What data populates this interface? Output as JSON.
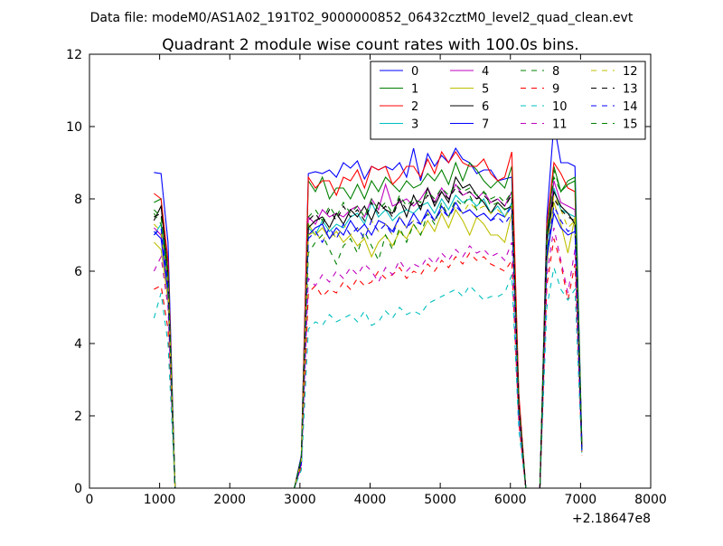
{
  "figure": {
    "suptitle": "Data file: modeM0/AS1A02_191T02_9000000852_06432cztM0_level2_quad_clean.evt"
  },
  "chart_data": {
    "type": "line",
    "title": "Quadrant 2 module wise count rates with 100.0s bins.",
    "xlabel": "",
    "ylabel": "",
    "xlim": [
      0,
      8000
    ],
    "ylim": [
      0,
      12
    ],
    "x_offset_label": "+2.18647e8",
    "x_ticks": [
      0,
      1000,
      2000,
      3000,
      4000,
      5000,
      6000,
      7000,
      8000
    ],
    "x_tick_labels": [
      "0",
      "1000",
      "2000",
      "3000",
      "4000",
      "5000",
      "6000",
      "7000",
      "8000"
    ],
    "y_ticks": [
      0,
      2,
      4,
      6,
      8,
      10,
      12
    ],
    "y_tick_labels": [
      "0",
      "2",
      "4",
      "6",
      "8",
      "10",
      "12"
    ],
    "grid": false,
    "legend_position": "top-right",
    "legend_columns": 4,
    "x": [
      920,
      1020,
      1120,
      1220,
      2820,
      2920,
      3020,
      3120,
      3220,
      3320,
      3420,
      3520,
      3620,
      3720,
      3820,
      3920,
      4020,
      4120,
      4220,
      4320,
      4420,
      4520,
      4620,
      4720,
      4820,
      4920,
      5020,
      5120,
      5220,
      5320,
      5420,
      5520,
      5620,
      5720,
      5820,
      5920,
      6020,
      6120,
      6220,
      6320,
      6420,
      6520,
      6620,
      6720,
      6820,
      6920,
      7020
    ],
    "series": [
      {
        "name": "0",
        "color": "#0000ff",
        "dash": "solid",
        "values": [
          8.73,
          8.7,
          6.8,
          0,
          0,
          0,
          0.9,
          8.7,
          8.75,
          8.7,
          8.8,
          8.6,
          9.0,
          8.85,
          9.05,
          8.55,
          8.9,
          8.8,
          8.9,
          8.8,
          9.0,
          8.6,
          9.4,
          8.5,
          9.25,
          8.9,
          9.2,
          9.0,
          9.4,
          9.1,
          9.0,
          8.7,
          8.8,
          8.8,
          8.5,
          8.55,
          8.6,
          2.5,
          0,
          0,
          0,
          7.5,
          10.1,
          9.0,
          9.0,
          8.9,
          1.2
        ]
      },
      {
        "name": "1",
        "color": "#008000",
        "dash": "solid",
        "values": [
          7.9,
          8.0,
          6.2,
          0,
          0,
          0,
          0.85,
          8.5,
          8.2,
          8.6,
          8.0,
          8.3,
          8.3,
          8.0,
          8.4,
          8.0,
          8.5,
          8.2,
          8.6,
          8.4,
          8.2,
          8.5,
          8.3,
          8.4,
          8.7,
          8.5,
          8.8,
          8.4,
          9.0,
          8.5,
          9.0,
          8.8,
          8.5,
          8.3,
          8.5,
          8.3,
          8.9,
          2.4,
          0,
          0,
          0,
          7.0,
          8.9,
          8.2,
          8.5,
          8.6,
          1.1
        ]
      },
      {
        "name": "2",
        "color": "#ff0000",
        "dash": "solid",
        "values": [
          8.15,
          8.0,
          6.3,
          0,
          0,
          0,
          0.8,
          8.6,
          8.3,
          8.5,
          8.5,
          8.1,
          8.6,
          8.5,
          8.8,
          8.3,
          8.9,
          8.8,
          8.9,
          8.4,
          8.6,
          8.9,
          8.9,
          8.6,
          9.1,
          8.7,
          9.3,
          9.0,
          9.3,
          9.0,
          8.9,
          8.9,
          9.1,
          8.7,
          8.5,
          8.6,
          9.3,
          2.6,
          0,
          0,
          0,
          7.3,
          9.0,
          8.7,
          8.3,
          8.2,
          1.1
        ]
      },
      {
        "name": "3",
        "color": "#00bfbf",
        "dash": "solid",
        "values": [
          7.0,
          7.3,
          5.7,
          0,
          0,
          0,
          0.75,
          7.2,
          7.0,
          7.4,
          7.1,
          7.3,
          7.2,
          7.5,
          7.6,
          7.3,
          7.9,
          7.5,
          7.7,
          7.4,
          7.6,
          7.7,
          7.6,
          7.8,
          7.9,
          7.6,
          8.0,
          7.7,
          8.1,
          7.9,
          8.0,
          7.8,
          8.0,
          7.6,
          7.8,
          7.5,
          7.9,
          2.2,
          0,
          0,
          0,
          6.5,
          8.3,
          7.7,
          7.6,
          7.5,
          1.0
        ]
      },
      {
        "name": "4",
        "color": "#bf00bf",
        "dash": "solid",
        "values": [
          7.2,
          7.0,
          5.6,
          0,
          0,
          0,
          0.75,
          7.5,
          7.3,
          7.7,
          7.5,
          7.6,
          7.5,
          7.7,
          7.8,
          7.5,
          8.0,
          7.7,
          8.4,
          7.8,
          7.9,
          8.0,
          7.8,
          8.0,
          8.3,
          7.9,
          8.3,
          8.0,
          8.4,
          8.1,
          8.2,
          8.0,
          8.2,
          7.9,
          8.0,
          7.8,
          8.2,
          2.3,
          0,
          0,
          0,
          6.8,
          8.5,
          7.9,
          7.8,
          7.7,
          1.0
        ]
      },
      {
        "name": "5",
        "color": "#bfbf00",
        "dash": "solid",
        "values": [
          6.8,
          6.6,
          5.2,
          0,
          0,
          0,
          0.7,
          7.3,
          7.0,
          7.2,
          6.9,
          7.1,
          6.8,
          7.0,
          6.7,
          6.9,
          6.4,
          6.8,
          7.0,
          6.7,
          7.1,
          6.9,
          7.3,
          7.0,
          7.4,
          7.1,
          7.6,
          7.2,
          7.7,
          7.4,
          7.0,
          7.5,
          7.3,
          7.0,
          7.0,
          6.8,
          7.6,
          2.1,
          0,
          0,
          0,
          6.2,
          7.9,
          7.3,
          6.5,
          7.5,
          1.0
        ]
      },
      {
        "name": "6",
        "color": "#000000",
        "dash": "solid",
        "values": [
          7.4,
          7.8,
          5.9,
          0,
          0,
          0,
          0.8,
          7.2,
          7.4,
          7.5,
          7.2,
          7.6,
          7.3,
          7.7,
          7.5,
          7.8,
          7.4,
          7.9,
          7.7,
          7.6,
          8.0,
          7.5,
          8.1,
          7.7,
          8.3,
          7.8,
          8.2,
          7.9,
          8.6,
          8.3,
          8.4,
          8.1,
          7.9,
          7.6,
          7.9,
          7.7,
          7.8,
          2.2,
          0,
          0,
          0,
          6.9,
          8.2,
          7.8,
          7.6,
          7.3,
          1.0
        ]
      },
      {
        "name": "7",
        "color": "#0000ff",
        "dash": "solid",
        "values": [
          7.1,
          6.9,
          5.4,
          0,
          0,
          0,
          0.7,
          7.0,
          7.2,
          7.3,
          6.9,
          7.2,
          7.0,
          7.4,
          7.1,
          7.3,
          7.0,
          7.4,
          7.3,
          7.1,
          7.5,
          7.2,
          7.6,
          7.3,
          7.7,
          7.4,
          7.8,
          7.5,
          7.9,
          7.6,
          7.7,
          7.5,
          7.6,
          7.4,
          7.6,
          7.5,
          7.8,
          2.1,
          0,
          0,
          0,
          6.4,
          7.6,
          7.2,
          7.0,
          7.1,
          1.0
        ]
      },
      {
        "name": "8",
        "color": "#008000",
        "dash": "dashed",
        "values": [
          7.6,
          7.3,
          5.9,
          0,
          0,
          0,
          0.75,
          6.5,
          6.8,
          7.0,
          6.6,
          6.2,
          6.7,
          6.9,
          6.5,
          7.1,
          6.7,
          6.3,
          7.0,
          6.6,
          7.2,
          6.8,
          7.3,
          7.0,
          7.6,
          7.3,
          7.9,
          7.5,
          8.0,
          7.8,
          8.1,
          7.7,
          8.2,
          7.8,
          7.9,
          7.7,
          8.2,
          2.3,
          0,
          0,
          0,
          6.9,
          8.8,
          8.2,
          8.4,
          8.5,
          1.1
        ]
      },
      {
        "name": "9",
        "color": "#ff0000",
        "dash": "dashed",
        "values": [
          5.5,
          5.6,
          4.4,
          0,
          0,
          0,
          0.6,
          5.4,
          5.6,
          5.3,
          5.5,
          5.4,
          5.7,
          5.5,
          5.8,
          5.6,
          5.7,
          6.0,
          5.8,
          5.9,
          6.1,
          5.8,
          6.0,
          5.9,
          6.2,
          6.0,
          6.3,
          6.1,
          6.4,
          6.2,
          6.5,
          6.3,
          6.4,
          6.2,
          6.1,
          6.0,
          6.3,
          1.8,
          0,
          0,
          0,
          5.6,
          6.9,
          6.2,
          5.2,
          6.2,
          0.9
        ]
      },
      {
        "name": "10",
        "color": "#00bfbf",
        "dash": "dashed",
        "values": [
          4.7,
          5.4,
          4.0,
          0,
          0,
          0,
          0.5,
          4.4,
          4.6,
          4.5,
          4.8,
          4.6,
          4.7,
          4.8,
          4.6,
          4.9,
          4.5,
          4.6,
          4.9,
          4.7,
          5.0,
          4.8,
          4.9,
          4.8,
          5.1,
          5.2,
          5.3,
          5.4,
          5.5,
          5.3,
          5.6,
          5.4,
          5.2,
          5.3,
          5.3,
          5.4,
          5.9,
          1.6,
          0,
          0,
          0,
          5.0,
          6.1,
          5.5,
          5.2,
          5.5,
          0.9
        ]
      },
      {
        "name": "11",
        "color": "#bf00bf",
        "dash": "dashed",
        "values": [
          6.0,
          6.4,
          5.0,
          0,
          0,
          0,
          0.6,
          5.8,
          5.6,
          5.9,
          5.7,
          6.0,
          5.8,
          6.1,
          5.9,
          6.2,
          6.0,
          5.7,
          6.1,
          5.9,
          6.3,
          6.0,
          6.2,
          6.1,
          6.4,
          6.2,
          6.5,
          6.3,
          6.6,
          6.4,
          6.7,
          6.5,
          6.6,
          6.4,
          6.5,
          6.3,
          6.8,
          2.0,
          0,
          0,
          0,
          5.9,
          7.2,
          6.3,
          5.4,
          6.6,
          1.0
        ]
      },
      {
        "name": "12",
        "color": "#bfbf00",
        "dash": "dashed",
        "values": [
          7.3,
          7.1,
          5.6,
          0,
          0,
          0,
          0.75,
          7.0,
          7.1,
          6.8,
          7.2,
          6.9,
          7.3,
          7.0,
          7.2,
          6.9,
          7.4,
          7.1,
          7.3,
          7.0,
          7.5,
          7.2,
          7.4,
          7.3,
          7.6,
          7.4,
          7.7,
          7.5,
          7.8,
          7.6,
          7.9,
          7.7,
          7.8,
          7.6,
          7.7,
          7.5,
          7.8,
          2.2,
          0,
          0,
          0,
          6.6,
          8.1,
          7.7,
          7.2,
          7.4,
          1.0
        ]
      },
      {
        "name": "13",
        "color": "#000000",
        "dash": "dashed",
        "values": [
          7.5,
          7.6,
          5.8,
          0,
          0,
          0,
          0.8,
          7.4,
          7.6,
          7.3,
          7.7,
          7.4,
          7.8,
          7.5,
          7.7,
          7.4,
          7.9,
          7.6,
          7.8,
          7.5,
          8.0,
          7.7,
          7.9,
          7.8,
          8.1,
          7.9,
          8.2,
          8.0,
          8.3,
          8.1,
          8.2,
          8.0,
          8.1,
          7.9,
          8.0,
          7.8,
          8.1,
          2.3,
          0,
          0,
          0,
          7.0,
          8.0,
          7.7,
          7.5,
          7.4,
          1.0
        ]
      },
      {
        "name": "14",
        "color": "#0000ff",
        "dash": "dashed",
        "values": [
          7.0,
          7.2,
          5.5,
          0,
          0,
          0,
          0.7,
          6.9,
          7.1,
          6.8,
          7.2,
          6.9,
          7.3,
          7.0,
          7.2,
          6.9,
          7.4,
          7.1,
          7.3,
          7.0,
          7.5,
          7.2,
          7.4,
          7.3,
          7.6,
          7.4,
          7.7,
          7.5,
          7.8,
          7.6,
          7.7,
          7.5,
          7.6,
          7.4,
          7.5,
          7.3,
          7.6,
          2.1,
          0,
          0,
          0,
          6.5,
          7.8,
          7.4,
          7.1,
          7.2,
          1.0
        ]
      },
      {
        "name": "15",
        "color": "#008000",
        "dash": "dashed",
        "values": [
          7.7,
          7.5,
          5.9,
          0,
          0,
          0,
          0.8,
          7.5,
          7.7,
          7.4,
          7.8,
          7.5,
          7.9,
          7.6,
          7.8,
          7.5,
          8.0,
          7.7,
          7.9,
          7.6,
          8.1,
          7.8,
          8.0,
          7.9,
          8.2,
          8.0,
          8.3,
          8.1,
          8.4,
          8.2,
          8.3,
          8.1,
          8.2,
          8.0,
          8.1,
          7.9,
          8.2,
          2.3,
          0,
          0,
          0,
          7.1,
          8.6,
          8.2,
          8.4,
          8.5,
          1.1
        ]
      }
    ]
  }
}
